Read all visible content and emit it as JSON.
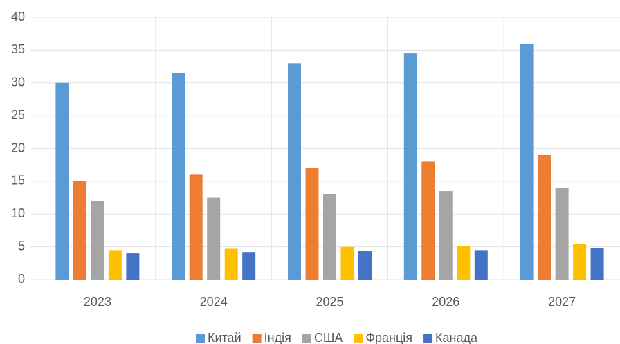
{
  "chart_data": {
    "type": "bar",
    "categories": [
      "2023",
      "2024",
      "2025",
      "2026",
      "2027"
    ],
    "series": [
      {
        "name": "Китай",
        "color": "#5b9bd5",
        "values": [
          30,
          31.5,
          33,
          34.5,
          36
        ]
      },
      {
        "name": "Індія",
        "color": "#ed7d31",
        "values": [
          15,
          16,
          17,
          18,
          19
        ]
      },
      {
        "name": "США",
        "color": "#a5a5a5",
        "values": [
          12,
          12.5,
          13,
          13.5,
          14
        ]
      },
      {
        "name": "Франція",
        "color": "#ffc000",
        "values": [
          4.5,
          4.7,
          5,
          5.1,
          5.4
        ]
      },
      {
        "name": "Канада",
        "color": "#4472c4",
        "values": [
          4,
          4.2,
          4.4,
          4.5,
          4.8
        ]
      }
    ],
    "ylim": [
      0,
      40
    ],
    "yticks": [
      0,
      5,
      10,
      15,
      20,
      25,
      30,
      35,
      40
    ],
    "grid": true,
    "legend": "bottom"
  }
}
